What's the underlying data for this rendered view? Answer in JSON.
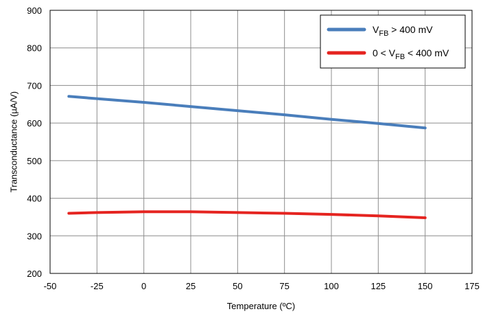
{
  "chart_data": {
    "type": "line",
    "title": "",
    "xlabel": "Temperature (ºC)",
    "ylabel": "Transconductance (µA/V)",
    "xlim": [
      -50,
      175
    ],
    "ylim": [
      200,
      900
    ],
    "xticks": [
      -50,
      -25,
      0,
      25,
      50,
      75,
      100,
      125,
      150,
      175
    ],
    "yticks": [
      200,
      300,
      400,
      500,
      600,
      700,
      800,
      900
    ],
    "xtick_labels": [
      "-50",
      "-25",
      "0",
      "25",
      "50",
      "75",
      "100",
      "125",
      "150",
      "175"
    ],
    "ytick_labels": [
      "200",
      "300",
      "400",
      "500",
      "600",
      "700",
      "800",
      "900"
    ],
    "grid": true,
    "legend": {
      "placement": "top-right",
      "entries": [
        {
          "main": "V",
          "sub": "FB",
          "rest": " > 400 mV"
        },
        {
          "main": "0 < V",
          "sub": "FB",
          "rest": " < 400 mV"
        }
      ]
    },
    "series": [
      {
        "color": "#4a7ebb",
        "x": [
          -40,
          -25,
          0,
          25,
          50,
          75,
          100,
          125,
          150
        ],
        "y": [
          671,
          665,
          655,
          644,
          633,
          622,
          610,
          599,
          587
        ]
      },
      {
        "color": "#e52420",
        "x": [
          -40,
          -25,
          0,
          25,
          50,
          75,
          100,
          125,
          150
        ],
        "y": [
          360,
          362,
          364,
          364,
          362,
          360,
          357,
          353,
          348
        ]
      }
    ]
  }
}
